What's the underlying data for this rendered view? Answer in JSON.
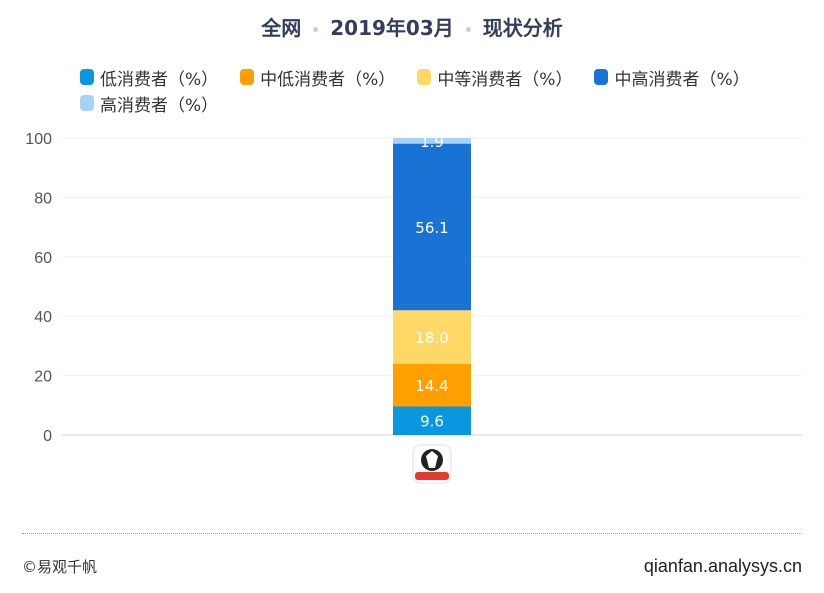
{
  "header": {
    "scope": "全网",
    "period": "2019年03月",
    "topic": "现状分析"
  },
  "chart_data": {
    "type": "bar",
    "stacked": true,
    "categories": [
      ""
    ],
    "series": [
      {
        "name": "低消费者（%）",
        "values": [
          9.6
        ],
        "color": "#0a97e0"
      },
      {
        "name": "中低消费者（%）",
        "values": [
          14.4
        ],
        "color": "#ff9f00"
      },
      {
        "name": "中等消费者（%）",
        "values": [
          18.0
        ],
        "color": "#ffd866"
      },
      {
        "name": "中高消费者（%）",
        "values": [
          56.1
        ],
        "color": "#1a73d4"
      },
      {
        "name": "高消费者（%）",
        "values": [
          1.9
        ],
        "color": "#a5d2f6"
      }
    ],
    "ylim": [
      0,
      100
    ],
    "yticks": [
      "0",
      "20",
      "40",
      "60",
      "80",
      "100"
    ],
    "grid": true,
    "legend": "top",
    "xlabel": "",
    "ylabel": ""
  },
  "footer": {
    "copyright": "©易观千帆",
    "site": "qianfan.analysys.cn"
  }
}
